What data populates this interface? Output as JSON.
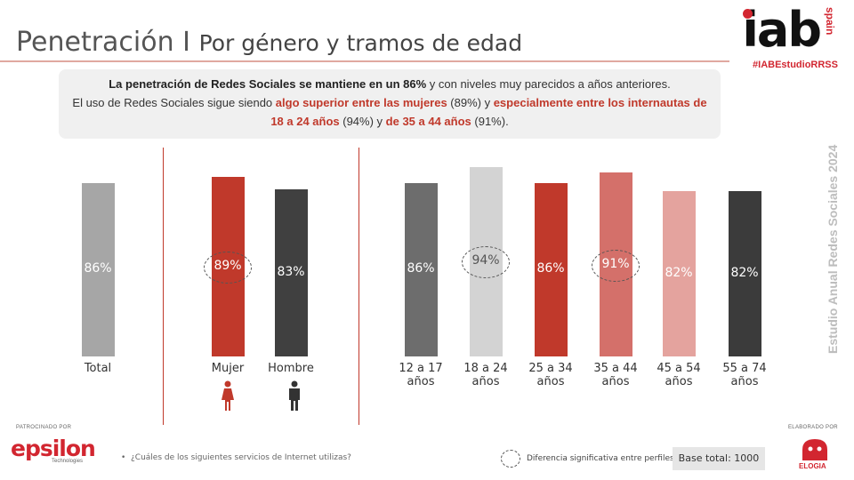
{
  "header": {
    "title_main": "Penetración I",
    "title_sub": "Por género y tramos de edad",
    "logo_text": "iab",
    "logo_country": "spain",
    "hashtag": "#IABEstudioRRSS",
    "side_label": "Estudio Anual Redes Sociales 2024"
  },
  "callout": {
    "l1_bold": "La penetración de Redes Sociales se mantiene en un 86%",
    "l1_rest": " y con niveles muy parecidos a años anteriores.",
    "l2_a": "El uso de Redes Sociales sigue siendo ",
    "l2_red1": "algo superior entre las mujeres",
    "l2_b": " (89%) y ",
    "l2_red2": "especialmente entre los internautas de",
    "l3_red1": "18 a 24 años",
    "l3_b": " (94%) y ",
    "l3_red2": "de 35 a 44 años",
    "l3_c": " (91%)."
  },
  "chart_data": {
    "type": "bar",
    "ylim": [
      0,
      100
    ],
    "grid": false,
    "legend": "none",
    "categories": [
      "Total",
      "Mujer",
      "Hombre",
      "12 a 17 años",
      "18 a 24 años",
      "25 a 34 años",
      "35 a 44 años",
      "45 a 54 años",
      "55 a 74 años"
    ],
    "values": [
      86,
      89,
      83,
      86,
      94,
      86,
      91,
      82,
      82
    ],
    "value_labels": [
      "86%",
      "89%",
      "83%",
      "86%",
      "94%",
      "86%",
      "91%",
      "82%",
      "82%"
    ],
    "label_lines": [
      [
        "Total"
      ],
      [
        "Mujer"
      ],
      [
        "Hombre"
      ],
      [
        "12 a 17",
        "años"
      ],
      [
        "18 a 24",
        "años"
      ],
      [
        "25 a 34",
        "años"
      ],
      [
        "35 a 44",
        "años"
      ],
      [
        "45 a 54",
        "años"
      ],
      [
        "55 a 74",
        "años"
      ]
    ],
    "colors": [
      "#a6a6a6",
      "#c0392b",
      "#404040",
      "#6d6d6d",
      "#d3d3d3",
      "#c0392b",
      "#d4706a",
      "#e4a39e",
      "#3b3b3b"
    ],
    "significant": [
      false,
      true,
      false,
      false,
      true,
      false,
      true,
      false,
      false
    ]
  },
  "footer": {
    "sponsor_label": "PATROCINADO POR",
    "sponsor_name": "epsilon",
    "sponsor_sub": "Technologies",
    "question": "¿Cuáles de los siguientes servicios de Internet utilizas?",
    "legend_text": "Diferencia significativa entre perfiles",
    "base": "Base total: 1000",
    "made_by_label": "ELABORADO POR",
    "made_by_name": "ELOGIA"
  }
}
